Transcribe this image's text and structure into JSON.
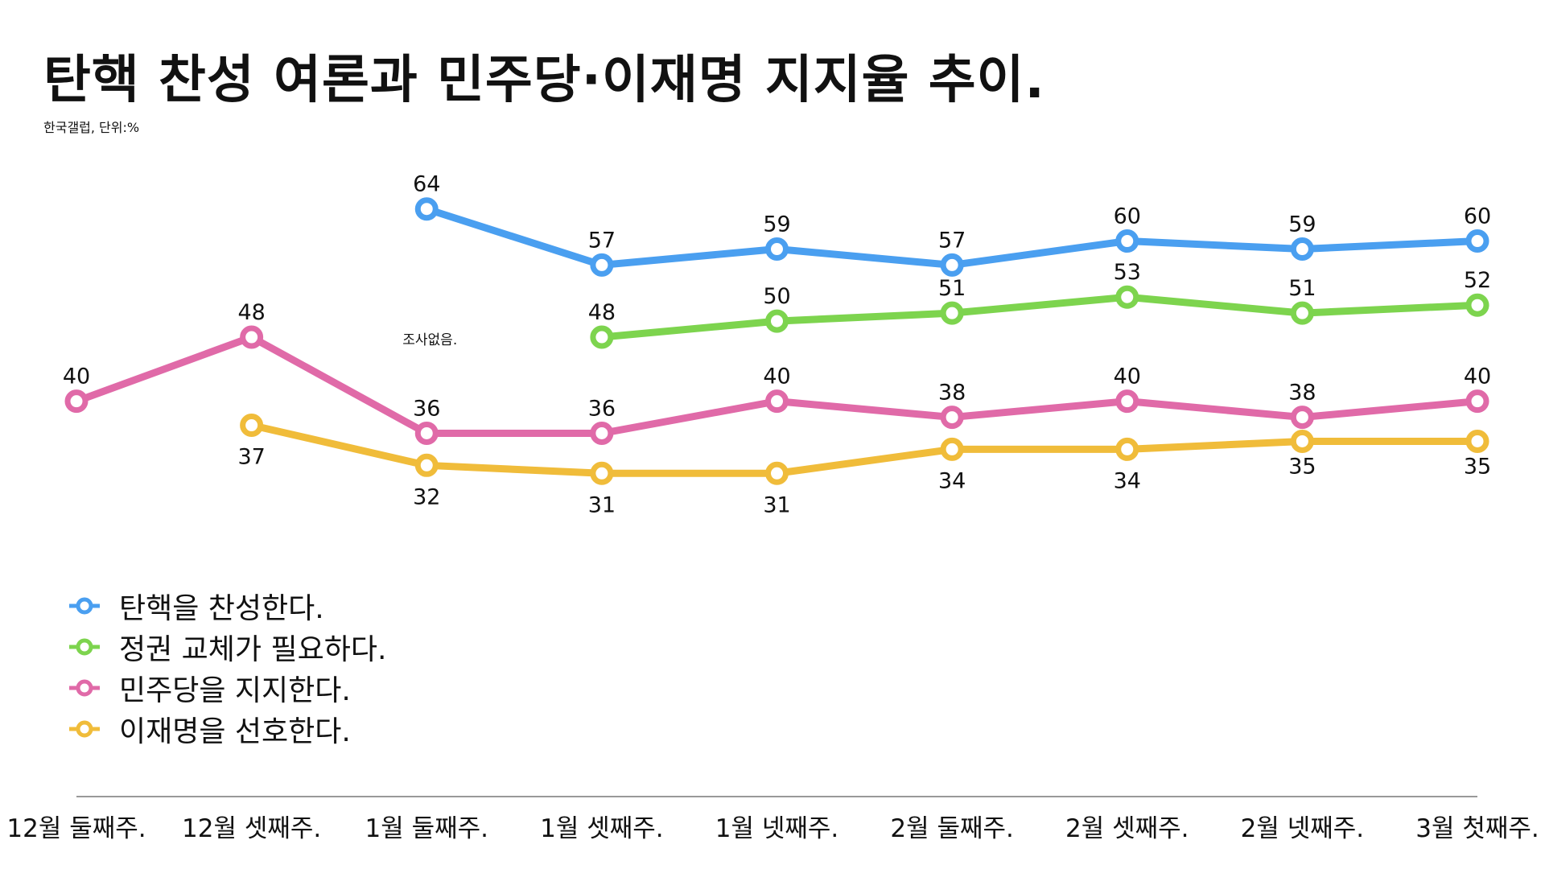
{
  "title": "탄핵 찬성 여론과 민주당·이재명 지지율 추이.",
  "source_note": "한국갤럽, 단위:%",
  "no_survey_note": "조사없음.",
  "chart_data": {
    "type": "line",
    "title": "탄핵 찬성 여론과 민주당·이재명 지지율 추이.",
    "subtitle": "한국갤럽, 단위:%",
    "xlabel": "",
    "ylabel": "",
    "categories": [
      "12월 둘째주.",
      "12월 셋째주.",
      "1월 둘째주.",
      "1월 셋째주.",
      "1월 넷째주.",
      "2월 둘째주.",
      "2월 셋째주.",
      "2월 넷째주.",
      "3월 첫째주."
    ],
    "ylim": [
      25,
      70
    ],
    "grid": false,
    "legend_position": "bottom-left",
    "series": [
      {
        "name": "탄핵을 찬성한다.",
        "color": "#4a9ff0",
        "values": [
          null,
          null,
          64,
          57,
          59,
          57,
          60,
          59,
          60
        ]
      },
      {
        "name": "정권 교체가 필요하다.",
        "color": "#7dd44e",
        "values": [
          null,
          null,
          null,
          48,
          50,
          51,
          53,
          51,
          52
        ]
      },
      {
        "name": "민주당을 지지한다.",
        "color": "#e06aa8",
        "values": [
          40,
          48,
          36,
          36,
          40,
          38,
          40,
          38,
          40
        ]
      },
      {
        "name": "이재명을 선호한다.",
        "color": "#f0bc3a",
        "values": [
          null,
          37,
          32,
          31,
          31,
          34,
          34,
          35,
          35
        ]
      }
    ],
    "annotations": [
      {
        "text": "조사없음.",
        "category": "1월 둘째주.",
        "series": "정권 교체가 필요하다."
      }
    ]
  }
}
